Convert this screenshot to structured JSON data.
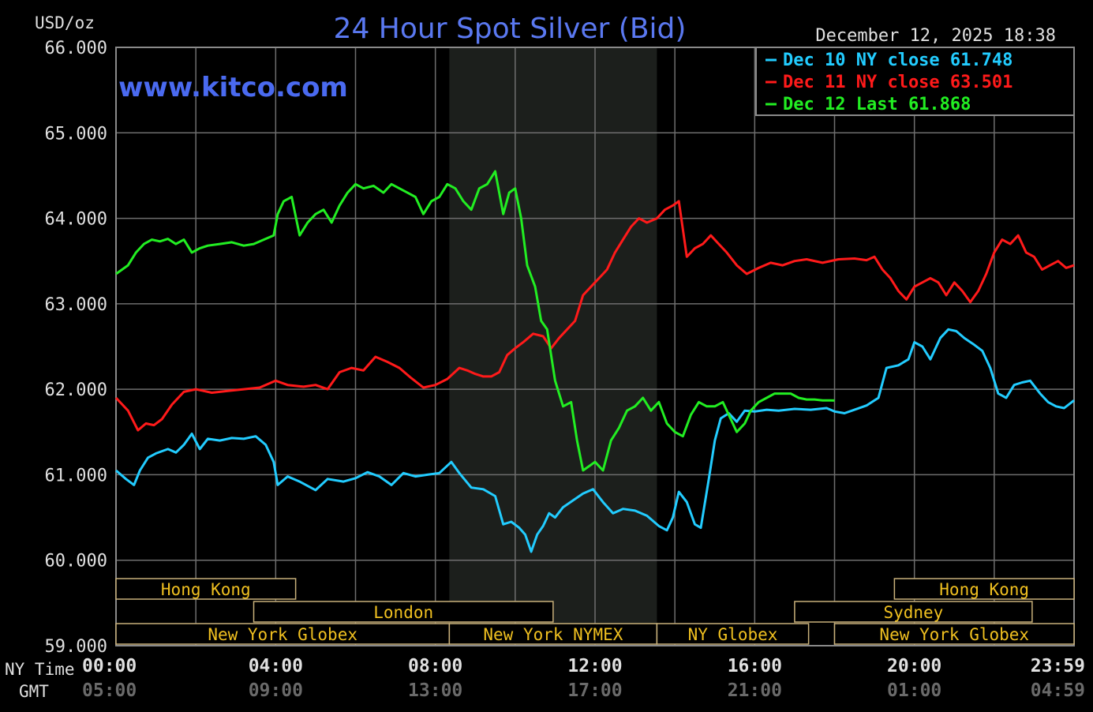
{
  "chart_data": {
    "type": "line",
    "title": "24 Hour Spot Silver (Bid)",
    "watermark": "www.kitco.com",
    "ylabel": "USD/oz",
    "timestamp": "December 12, 2025 18:38",
    "ylim": [
      59000,
      66000
    ],
    "yticks": [
      {
        "value": 66000,
        "label": "66.000"
      },
      {
        "value": 65000,
        "label": "65.000"
      },
      {
        "value": 64000,
        "label": "64.000"
      },
      {
        "value": 63000,
        "label": "63.000"
      },
      {
        "value": 62000,
        "label": "62.000"
      },
      {
        "value": 61000,
        "label": "61.000"
      },
      {
        "value": 60000,
        "label": "60.000"
      },
      {
        "value": 59000,
        "label": "59.000"
      }
    ],
    "xlim": [
      0,
      24
    ],
    "xgrid_hours": [
      0,
      2,
      4,
      6,
      8,
      10,
      12,
      14,
      16,
      18,
      20,
      22,
      24
    ],
    "xticks": [
      {
        "hour": 0,
        "ny": "00:00",
        "gmt": "05:00",
        "anchor": "start"
      },
      {
        "hour": 4,
        "ny": "04:00",
        "gmt": "09:00",
        "anchor": "middle"
      },
      {
        "hour": 8,
        "ny": "08:00",
        "gmt": "13:00",
        "anchor": "middle"
      },
      {
        "hour": 12,
        "ny": "12:00",
        "gmt": "17:00",
        "anchor": "middle"
      },
      {
        "hour": 16,
        "ny": "16:00",
        "gmt": "21:00",
        "anchor": "middle"
      },
      {
        "hour": 20,
        "ny": "20:00",
        "gmt": "01:00",
        "anchor": "middle"
      },
      {
        "hour": 24,
        "ny": "23:59",
        "gmt": "04:59",
        "anchor": "end"
      }
    ],
    "row_labels": {
      "ny": "NY Time",
      "gmt": "GMT"
    },
    "shaded_range": [
      8.35,
      13.55
    ],
    "grid": true,
    "legend_position": "top-right",
    "series": [
      {
        "name": "Dec 10 NY close 61.748",
        "color": "#22ccff",
        "x": [
          0,
          0.25,
          0.45,
          0.6,
          0.8,
          1.0,
          1.3,
          1.5,
          1.7,
          1.9,
          2.1,
          2.3,
          2.6,
          2.9,
          3.2,
          3.5,
          3.75,
          3.95,
          4.05,
          4.3,
          4.6,
          5.0,
          5.3,
          5.7,
          6.0,
          6.3,
          6.6,
          6.9,
          7.2,
          7.5,
          7.8,
          8.1,
          8.4,
          8.6,
          8.9,
          9.2,
          9.5,
          9.7,
          9.9,
          10.1,
          10.25,
          10.4,
          10.55,
          10.7,
          10.85,
          11.0,
          11.2,
          11.45,
          11.7,
          11.95,
          12.2,
          12.45,
          12.7,
          13.0,
          13.3,
          13.6,
          13.8,
          13.95,
          14.1,
          14.3,
          14.5,
          14.65,
          14.85,
          15.0,
          15.15,
          15.35,
          15.55,
          15.75,
          16.0,
          16.3,
          16.6,
          17.0,
          17.4,
          17.8,
          18.0,
          18.25,
          18.5,
          18.8,
          19.1,
          19.3,
          19.6,
          19.85,
          20.0,
          20.2,
          20.4,
          20.65,
          20.85,
          21.05,
          21.25,
          21.5,
          21.7,
          21.9,
          22.1,
          22.3,
          22.5,
          22.7,
          22.9,
          23.15,
          23.35,
          23.55,
          23.75,
          24.0
        ],
        "values": [
          61050,
          60950,
          60880,
          61050,
          61200,
          61250,
          61300,
          61260,
          61350,
          61480,
          61300,
          61420,
          61400,
          61430,
          61420,
          61450,
          61350,
          61150,
          60880,
          60980,
          60920,
          60820,
          60950,
          60920,
          60960,
          61030,
          60980,
          60880,
          61020,
          60980,
          61000,
          61020,
          61150,
          61020,
          60850,
          60830,
          60750,
          60420,
          60450,
          60380,
          60300,
          60100,
          60300,
          60400,
          60550,
          60500,
          60620,
          60700,
          60780,
          60830,
          60680,
          60550,
          60600,
          60580,
          60520,
          60400,
          60350,
          60500,
          60800,
          60680,
          60420,
          60380,
          60950,
          61400,
          61660,
          61720,
          61620,
          61750,
          61740,
          61760,
          61750,
          61770,
          61760,
          61780,
          61740,
          61720,
          61760,
          61810,
          61900,
          62250,
          62280,
          62350,
          62550,
          62500,
          62350,
          62600,
          62700,
          62680,
          62600,
          62520,
          62450,
          62250,
          61950,
          61900,
          62050,
          62080,
          62100,
          61950,
          61850,
          61800,
          61780,
          61870
        ]
      },
      {
        "name": "Dec 11 NY close 63.501",
        "color": "#ff1a1a",
        "x": [
          0,
          0.3,
          0.55,
          0.75,
          0.95,
          1.15,
          1.4,
          1.7,
          2.0,
          2.4,
          2.8,
          3.2,
          3.6,
          4.0,
          4.3,
          4.7,
          5.0,
          5.3,
          5.6,
          5.9,
          6.2,
          6.5,
          6.8,
          7.1,
          7.4,
          7.7,
          8.0,
          8.3,
          8.6,
          8.8,
          9.0,
          9.2,
          9.4,
          9.6,
          9.8,
          10.0,
          10.2,
          10.45,
          10.7,
          10.9,
          11.1,
          11.3,
          11.5,
          11.7,
          11.9,
          12.1,
          12.3,
          12.5,
          12.7,
          12.9,
          13.1,
          13.3,
          13.55,
          13.75,
          13.95,
          14.1,
          14.3,
          14.5,
          14.7,
          14.9,
          15.1,
          15.3,
          15.55,
          15.8,
          16.1,
          16.4,
          16.7,
          17.0,
          17.3,
          17.7,
          18.1,
          18.5,
          18.8,
          19.0,
          19.2,
          19.4,
          19.6,
          19.8,
          20.0,
          20.2,
          20.4,
          20.6,
          20.8,
          21.0,
          21.2,
          21.4,
          21.6,
          21.8,
          22.0,
          22.2,
          22.4,
          22.6,
          22.8,
          23.0,
          23.2,
          23.4,
          23.6,
          23.8,
          24.0
        ],
        "values": [
          61900,
          61750,
          61520,
          61600,
          61580,
          61650,
          61820,
          61970,
          62000,
          61960,
          61980,
          62000,
          62020,
          62100,
          62050,
          62030,
          62050,
          62000,
          62200,
          62250,
          62220,
          62380,
          62320,
          62250,
          62130,
          62020,
          62050,
          62120,
          62250,
          62220,
          62180,
          62150,
          62150,
          62200,
          62400,
          62480,
          62550,
          62650,
          62620,
          62480,
          62600,
          62700,
          62800,
          63100,
          63200,
          63300,
          63400,
          63600,
          63750,
          63900,
          64000,
          63950,
          64000,
          64100,
          64150,
          64200,
          63550,
          63650,
          63700,
          63800,
          63700,
          63600,
          63450,
          63350,
          63420,
          63480,
          63450,
          63500,
          63520,
          63480,
          63520,
          63530,
          63510,
          63550,
          63400,
          63300,
          63150,
          63050,
          63200,
          63250,
          63300,
          63250,
          63100,
          63250,
          63150,
          63020,
          63150,
          63350,
          63600,
          63750,
          63700,
          63800,
          63600,
          63550,
          63400,
          63450,
          63500,
          63420,
          63450
        ]
      },
      {
        "name": "Dec 12 Last 61.868",
        "color": "#22ee22",
        "x": [
          0,
          0.3,
          0.5,
          0.7,
          0.9,
          1.1,
          1.3,
          1.5,
          1.7,
          1.9,
          2.1,
          2.3,
          2.6,
          2.9,
          3.2,
          3.45,
          3.7,
          3.95,
          4.05,
          4.2,
          4.4,
          4.6,
          4.8,
          5.0,
          5.2,
          5.4,
          5.6,
          5.8,
          6.0,
          6.2,
          6.45,
          6.7,
          6.9,
          7.1,
          7.3,
          7.5,
          7.7,
          7.9,
          8.1,
          8.3,
          8.5,
          8.7,
          8.9,
          9.1,
          9.3,
          9.5,
          9.7,
          9.85,
          10.0,
          10.15,
          10.3,
          10.5,
          10.65,
          10.8,
          11.0,
          11.2,
          11.4,
          11.55,
          11.7,
          11.85,
          12.0,
          12.2,
          12.4,
          12.6,
          12.8,
          13.0,
          13.2,
          13.4,
          13.6,
          13.8,
          14.0,
          14.2,
          14.4,
          14.6,
          14.8,
          15.0,
          15.2,
          15.4,
          15.55,
          15.75,
          15.9,
          16.1,
          16.3,
          16.5,
          16.7,
          16.9,
          17.1,
          17.3,
          17.5,
          17.7,
          17.9,
          18.0
        ],
        "values": [
          63350,
          63450,
          63600,
          63700,
          63750,
          63730,
          63760,
          63700,
          63750,
          63600,
          63650,
          63680,
          63700,
          63720,
          63680,
          63700,
          63750,
          63800,
          64050,
          64200,
          64250,
          63800,
          63950,
          64050,
          64100,
          63950,
          64150,
          64300,
          64400,
          64350,
          64380,
          64300,
          64400,
          64350,
          64300,
          64250,
          64050,
          64200,
          64250,
          64400,
          64350,
          64200,
          64100,
          64350,
          64400,
          64550,
          64050,
          64300,
          64350,
          64000,
          63450,
          63200,
          62800,
          62700,
          62100,
          61800,
          61850,
          61400,
          61050,
          61100,
          61150,
          61050,
          61400,
          61550,
          61750,
          61800,
          61900,
          61750,
          61850,
          61600,
          61500,
          61450,
          61700,
          61850,
          61800,
          61800,
          61850,
          61650,
          61500,
          61600,
          61750,
          61850,
          61900,
          61950,
          61950,
          61950,
          61900,
          61880,
          61880,
          61870,
          61870,
          61868
        ]
      }
    ]
  },
  "sessions": [
    {
      "label": "Hong Kong",
      "start": 0,
      "end": 4.5,
      "row": 0
    },
    {
      "label": "London",
      "start": 3.45,
      "end": 10.95,
      "row": 1
    },
    {
      "label": "New York Globex",
      "start": 0,
      "end": 8.35,
      "row": 2
    },
    {
      "label": "New York NYMEX",
      "start": 8.35,
      "end": 13.55,
      "row": 2
    },
    {
      "label": "NY Globex",
      "start": 13.55,
      "end": 17.35,
      "row": 2
    },
    {
      "label": "Hong Kong",
      "start": 19.5,
      "end": 24,
      "row": 0
    },
    {
      "label": "Sydney",
      "start": 17.0,
      "end": 22.95,
      "row": 1
    },
    {
      "label": "New York Globex",
      "start": 18.0,
      "end": 24,
      "row": 2
    }
  ]
}
